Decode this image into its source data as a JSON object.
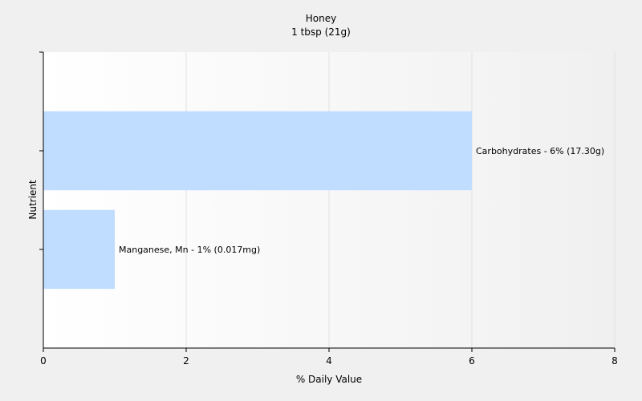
{
  "chart_data": {
    "type": "bar",
    "orientation": "horizontal",
    "title": "Honey",
    "subtitle": "1 tbsp (21g)",
    "xlabel": "% Daily Value",
    "ylabel": "Nutrient",
    "xlim": [
      0,
      8
    ],
    "xticks": [
      0,
      2,
      4,
      6,
      8
    ],
    "grid": true,
    "categories": [
      "Carbohydrates",
      "Manganese, Mn"
    ],
    "values": [
      6,
      1
    ],
    "labels": [
      "Carbohydrates - 6% (17.30g)",
      "Manganese, Mn - 1% (0.017mg)"
    ],
    "bar_color": "#c0dcff"
  }
}
